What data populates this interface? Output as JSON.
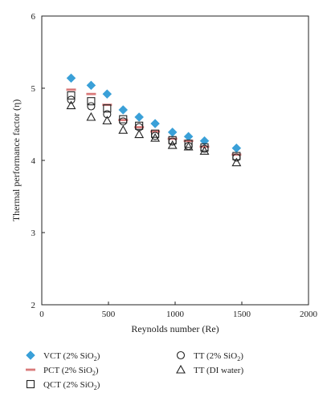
{
  "chart_data": {
    "type": "scatter",
    "xlabel": "Reynolds number (Re)",
    "ylabel": "Thermal performance factor (η)",
    "xlim": [
      0,
      2000
    ],
    "ylim": [
      2,
      6
    ],
    "xticks": [
      "0",
      "500",
      "1000",
      "1500",
      "2000"
    ],
    "yticks": [
      "2",
      "3",
      "4",
      "5",
      "6"
    ],
    "grid": false,
    "legend_position": "bottom",
    "series": [
      {
        "name": "VCT (2% SiO",
        "name_sub": "2",
        "name_tail": ")",
        "marker": "diamond",
        "color": "#3aa0d8",
        "x": [
          220,
          370,
          490,
          610,
          730,
          850,
          980,
          1100,
          1220,
          1460
        ],
        "y": [
          5.14,
          5.04,
          4.92,
          4.7,
          4.6,
          4.51,
          4.39,
          4.33,
          4.27,
          4.17
        ]
      },
      {
        "name": "PCT (2% SiO",
        "name_sub": "2",
        "name_tail": ")",
        "marker": "dash",
        "color": "#d97a7a",
        "x": [
          220,
          370,
          490,
          610,
          730,
          850,
          980,
          1100,
          1220,
          1460
        ],
        "y": [
          4.98,
          4.92,
          4.77,
          4.56,
          4.46,
          4.4,
          4.3,
          4.27,
          4.19,
          4.08
        ]
      },
      {
        "name": "QCT (2% SiO",
        "name_sub": "2",
        "name_tail": ")",
        "marker": "square",
        "color": "#222222",
        "x": [
          220,
          370,
          490,
          610,
          730,
          850,
          980,
          1100,
          1220,
          1460
        ],
        "y": [
          4.9,
          4.82,
          4.72,
          4.57,
          4.48,
          4.37,
          4.28,
          4.23,
          4.18,
          4.06
        ]
      },
      {
        "name": "TT (2% SiO",
        "name_sub": "2",
        "name_tail": ")",
        "marker": "circle",
        "color": "#222222",
        "x": [
          220,
          370,
          490,
          610,
          730,
          850,
          980,
          1100,
          1220,
          1460
        ],
        "y": [
          4.84,
          4.75,
          4.64,
          4.54,
          4.46,
          4.34,
          4.26,
          4.2,
          4.16,
          4.04
        ]
      },
      {
        "name": "TT (DI water)",
        "name_sub": "",
        "name_tail": "",
        "marker": "triangle",
        "color": "#222222",
        "x": [
          220,
          370,
          490,
          610,
          730,
          850,
          980,
          1100,
          1220,
          1460
        ],
        "y": [
          4.76,
          4.6,
          4.55,
          4.42,
          4.36,
          4.31,
          4.21,
          4.19,
          4.13,
          3.97
        ]
      }
    ]
  }
}
